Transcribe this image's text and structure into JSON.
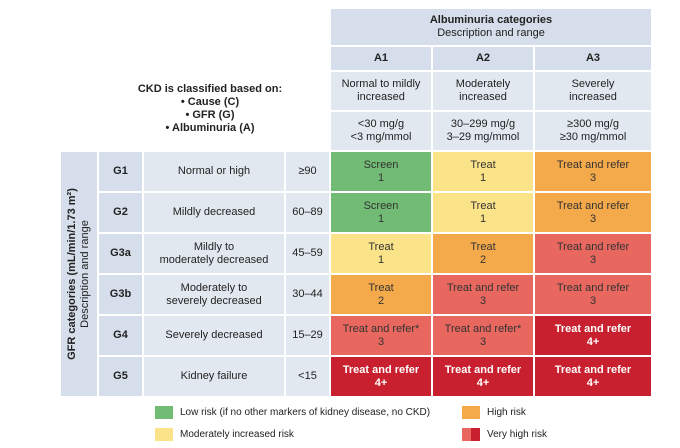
{
  "header": {
    "title": "Albuminuria categories",
    "subtitle": "Description and range"
  },
  "columns": [
    {
      "code": "A1",
      "description": "Normal to mildly\nincreased",
      "range": "<30 mg/g\n<3 mg/mmol"
    },
    {
      "code": "A2",
      "description": "Moderately\nincreased",
      "range": "30–299 mg/g\n3–29 mg/mmol"
    },
    {
      "code": "A3",
      "description": "Severely\nincreased",
      "range": "≥300 mg/g\n≥30 mg/mmol"
    }
  ],
  "classification": {
    "heading": "CKD is classified based on:",
    "items": [
      "• Cause (C)",
      "• GFR (G)",
      "• Albuminuria (A)"
    ]
  },
  "gfr_axis": {
    "title": "GFR categories (mL/min/1.73 m²)",
    "subtitle": "Description and range"
  },
  "rows": [
    {
      "code": "G1",
      "description": "Normal or high",
      "range": "≥90",
      "cells": [
        {
          "action": "Screen",
          "level": "1",
          "color": "#72bb74"
        },
        {
          "action": "Treat",
          "level": "1",
          "color": "#fbe389"
        },
        {
          "action": "Treat and refer",
          "level": "3",
          "color": "#f4a94b"
        }
      ]
    },
    {
      "code": "G2",
      "description": "Mildly decreased",
      "range": "60–89",
      "cells": [
        {
          "action": "Screen",
          "level": "1",
          "color": "#72bb74"
        },
        {
          "action": "Treat",
          "level": "1",
          "color": "#fbe389"
        },
        {
          "action": "Treat and refer",
          "level": "3",
          "color": "#f4a94b"
        }
      ]
    },
    {
      "code": "G3a",
      "description": "Mildly to\nmoderately decreased",
      "range": "45–59",
      "cells": [
        {
          "action": "Treat",
          "level": "1",
          "color": "#fbe389"
        },
        {
          "action": "Treat",
          "level": "2",
          "color": "#f4a94b"
        },
        {
          "action": "Treat and refer",
          "level": "3",
          "color": "#e8675f"
        }
      ]
    },
    {
      "code": "G3b",
      "description": "Moderately to\nseverely decreased",
      "range": "30–44",
      "cells": [
        {
          "action": "Treat",
          "level": "2",
          "color": "#f4a94b"
        },
        {
          "action": "Treat and refer",
          "level": "3",
          "color": "#e8675f"
        },
        {
          "action": "Treat and refer",
          "level": "3",
          "color": "#e8675f"
        }
      ]
    },
    {
      "code": "G4",
      "description": "Severely decreased",
      "range": "15–29",
      "cells": [
        {
          "action": "Treat and refer*",
          "level": "3",
          "color": "#e8675f"
        },
        {
          "action": "Treat and refer*",
          "level": "3",
          "color": "#e8675f"
        },
        {
          "action": "Treat and refer",
          "level": "4+",
          "color": "#c8202e"
        }
      ]
    },
    {
      "code": "G5",
      "description": "Kidney failure",
      "range": "<15",
      "cells": [
        {
          "action": "Treat and refer",
          "level": "4+",
          "color": "#c8202e"
        },
        {
          "action": "Treat and refer",
          "level": "4+",
          "color": "#c8202e"
        },
        {
          "action": "Treat and refer",
          "level": "4+",
          "color": "#c8202e"
        }
      ]
    }
  ],
  "legend": [
    {
      "label": "Low risk (if no other markers of kidney disease, no CKD)",
      "colors": [
        "#72bb74"
      ]
    },
    {
      "label": "High risk",
      "colors": [
        "#f4a94b"
      ]
    },
    {
      "label": "Moderately increased risk",
      "colors": [
        "#fbe389"
      ]
    },
    {
      "label": "Very high risk",
      "colors": [
        "#e8675f",
        "#c8202e"
      ]
    }
  ]
}
